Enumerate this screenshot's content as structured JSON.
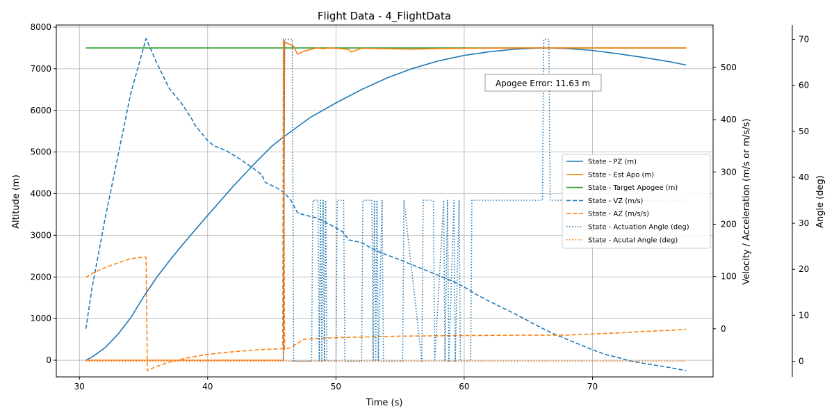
{
  "chart_data": {
    "type": "line",
    "title": "Flight Data - 4_FlightData",
    "xlabel": "Time (s)",
    "ylabel_left": "Altitude (m)",
    "ylabel_right1": "Velocity / Acceleration (m/s or m/s/s)",
    "ylabel_right2": "Angle (deg)",
    "xlim": [
      28.2,
      79.4
    ],
    "ylim_left": [
      -400,
      8050
    ],
    "ylim_right1": [
      -92,
      581
    ],
    "ylim_right2": [
      -3.4,
      73.1
    ],
    "x_ticks": [
      30,
      40,
      50,
      60,
      70
    ],
    "y_ticks_left": [
      0,
      1000,
      2000,
      3000,
      4000,
      5000,
      6000,
      7000,
      8000
    ],
    "y_ticks_right1": [
      0,
      100,
      200,
      300,
      400,
      500
    ],
    "y_ticks_right2": [
      0,
      10,
      20,
      30,
      40,
      50,
      60,
      70
    ],
    "grid": true,
    "legend_position": "center-right",
    "annotation": "Apogee Error: 11.63 m",
    "series": [
      {
        "name": "State - PZ (m)",
        "axis": "left",
        "color": "#1f77b4",
        "style": "solid",
        "x": [
          30.5,
          31,
          32,
          33,
          34,
          35,
          36,
          37,
          38,
          39,
          40,
          41,
          42,
          43,
          44,
          45,
          46,
          48,
          50,
          52,
          54,
          56,
          58,
          60,
          62,
          64,
          66,
          66.5,
          68,
          70,
          72,
          74,
          76,
          77.3
        ],
        "y": [
          0,
          80,
          300,
          620,
          1020,
          1520,
          1980,
          2380,
          2760,
          3120,
          3480,
          3830,
          4180,
          4510,
          4830,
          5140,
          5380,
          5830,
          6180,
          6500,
          6780,
          7010,
          7190,
          7320,
          7410,
          7470,
          7500,
          7502,
          7485,
          7440,
          7360,
          7270,
          7170,
          7090
        ]
      },
      {
        "name": "State - Est Apo (m)",
        "axis": "left",
        "color": "#ff7f0e",
        "style": "solid",
        "x": [
          30.5,
          45.9,
          46.0,
          46.3,
          46.7,
          47.0,
          47.5,
          48.0,
          48.5,
          49.0,
          49.5,
          50.0,
          50.5,
          51.0,
          51.2,
          51.6,
          52.0,
          54.0,
          56.0,
          58.0,
          60.0,
          62.0,
          64.0,
          66.0,
          68.0,
          70.0,
          72.0,
          74.0,
          76.0,
          77.3
        ],
        "y": [
          0,
          0,
          7640,
          7600,
          7540,
          7350,
          7420,
          7460,
          7500,
          7480,
          7500,
          7490,
          7480,
          7460,
          7400,
          7450,
          7490,
          7480,
          7470,
          7485,
          7490,
          7495,
          7498,
          7500,
          7500,
          7500,
          7500,
          7500,
          7500,
          7500
        ]
      },
      {
        "name": "State - Target Apogee (m)",
        "axis": "left",
        "color": "#2ca02c",
        "style": "solid",
        "x": [
          30.5,
          77.3
        ],
        "y": [
          7500,
          7500
        ]
      },
      {
        "name": "State - VZ (m/s)",
        "axis": "right1",
        "color": "#1f77b4",
        "style": "dashed",
        "x": [
          30.5,
          31,
          32,
          33,
          34,
          35.2,
          36,
          37,
          38,
          38.8,
          39,
          39.5,
          40,
          40.5,
          41.5,
          42.5,
          43.5,
          44.2,
          44.5,
          45.5,
          46,
          46.5,
          47,
          47.5,
          48.5,
          49.5,
          50.5,
          51,
          52,
          53,
          54,
          55,
          56,
          57,
          58,
          59,
          60,
          61,
          62,
          63,
          64,
          65,
          66,
          67,
          68,
          69,
          70,
          71,
          72,
          73,
          74,
          75,
          76,
          77.3
        ],
        "y": [
          0,
          80,
          210,
          330,
          450,
          555,
          510,
          460,
          430,
          400,
          390,
          375,
          360,
          350,
          340,
          325,
          308,
          295,
          280,
          268,
          260,
          245,
          222,
          218,
          212,
          200,
          186,
          170,
          165,
          151,
          141,
          132,
          122,
          112,
          102,
          92,
          80,
          65,
          52,
          40,
          28,
          15,
          2,
          -10,
          -20,
          -30,
          -40,
          -49,
          -55,
          -62,
          -66,
          -70,
          -74,
          -80
        ]
      },
      {
        "name": "State - AZ (m/s/s)",
        "axis": "right1",
        "color": "#ff7f0e",
        "style": "dashed",
        "x": [
          30.5,
          31,
          32,
          33,
          34,
          34.9,
          35.2,
          35.3,
          36,
          37,
          38,
          39,
          40,
          41,
          42,
          43,
          44,
          45,
          45.85,
          45.9,
          46.0,
          46.5,
          46.8,
          47.5,
          50,
          55,
          60,
          65,
          68,
          70,
          72,
          74,
          76,
          77.3
        ],
        "y": [
          98,
          106,
          117,
          126,
          134,
          137,
          137,
          -80,
          -72,
          -64,
          -58,
          -53,
          -49,
          -46,
          -44,
          -42,
          -40,
          -39,
          -38,
          555,
          -39,
          -36,
          -31,
          -20,
          -17,
          -14,
          -13,
          -12,
          -12,
          -10,
          -8,
          -5,
          -3,
          -1
        ]
      },
      {
        "name": "State - Actuation Angle (deg)",
        "axis": "right2",
        "color": "#1f77b4",
        "style": "dotted",
        "x": [
          30.5,
          45.9,
          46.0,
          46.6,
          46.7,
          48.1,
          48.2,
          48.6,
          48.7,
          48.8,
          48.9,
          49.0,
          49.1,
          49.2,
          49.3,
          50.0,
          50.1,
          50.6,
          50.7,
          52.0,
          52.1,
          52.8,
          52.9,
          53.0,
          53.1,
          53.2,
          53.3,
          53.6,
          53.7,
          55.2,
          55.3,
          56.7,
          56.8,
          57.6,
          57.7,
          58.4,
          58.5,
          58.7,
          58.8,
          59.2,
          59.3,
          59.6,
          59.7,
          60.5,
          60.6,
          61.0,
          61.1,
          66.1,
          66.2,
          66.6,
          66.7,
          77.3
        ],
        "y": [
          0,
          0,
          70,
          70,
          0,
          0,
          35,
          35,
          0,
          35,
          0,
          35,
          0,
          35,
          0,
          0,
          35,
          35,
          0,
          0,
          35,
          35,
          0,
          35,
          0,
          35,
          0,
          35,
          0,
          0,
          35,
          0,
          35,
          35,
          0,
          35,
          0,
          35,
          0,
          35,
          0,
          35,
          0,
          0,
          35,
          35,
          35,
          35,
          70,
          70,
          35,
          35
        ]
      },
      {
        "name": "State - Acutal Angle (deg)",
        "axis": "right2",
        "color": "#ff7f0e",
        "style": "dotted",
        "x": [
          30.5,
          77.3
        ],
        "y": [
          0,
          0
        ]
      }
    ]
  }
}
